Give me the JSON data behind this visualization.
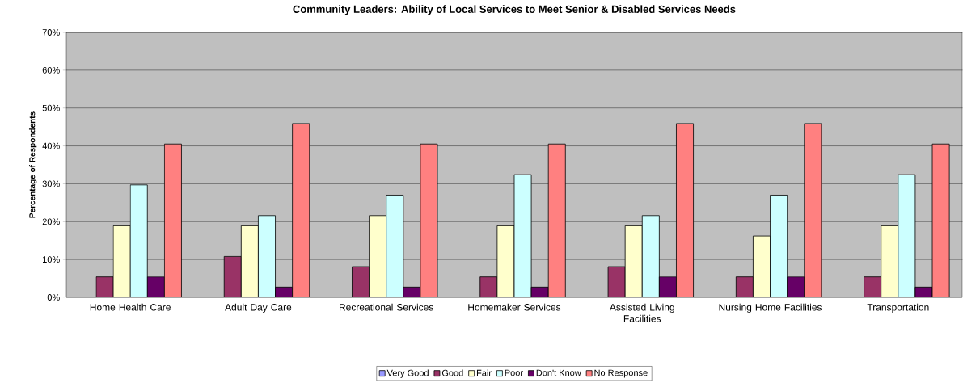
{
  "chart_data": {
    "type": "bar",
    "title": "Community Leaders: Ability of Local Services to Meet Senior & Disabled Services Needs",
    "ylabel": "Percentage of Respondents",
    "categories": [
      "Home Health Care",
      "Adult Day Care",
      "Recreational Services",
      "Homemaker Services",
      "Assisted Living Facilities",
      "Nursing Home Facilities",
      "Transportation"
    ],
    "series": [
      {
        "name": "Very Good",
        "color": "#9999ff",
        "values": [
          0,
          0,
          0,
          0,
          0,
          0,
          0
        ]
      },
      {
        "name": "Good",
        "color": "#993366",
        "values": [
          5.4,
          10.8,
          8.1,
          5.4,
          8.1,
          5.4,
          5.4
        ]
      },
      {
        "name": "Fair",
        "color": "#ffffcc",
        "values": [
          18.9,
          18.9,
          21.6,
          18.9,
          18.9,
          16.2,
          18.9
        ]
      },
      {
        "name": "Poor",
        "color": "#ccffff",
        "values": [
          29.7,
          21.6,
          27.0,
          32.4,
          21.6,
          27.0,
          32.4
        ]
      },
      {
        "name": "Don't Know",
        "color": "#660066",
        "values": [
          5.4,
          2.7,
          2.7,
          2.7,
          5.4,
          5.4,
          2.7
        ]
      },
      {
        "name": "No Response",
        "color": "#ff8080",
        "values": [
          40.5,
          45.9,
          40.5,
          40.5,
          45.9,
          45.9,
          40.5
        ]
      }
    ],
    "ylim": [
      0,
      70
    ],
    "yticks": [
      {
        "value": 0,
        "label": "0%"
      },
      {
        "value": 10,
        "label": "10%"
      },
      {
        "value": 20,
        "label": "20%"
      },
      {
        "value": 30,
        "label": "30%"
      },
      {
        "value": 40,
        "label": "40%"
      },
      {
        "value": 50,
        "label": "50%"
      },
      {
        "value": 60,
        "label": "60%"
      },
      {
        "value": 70,
        "label": "70%"
      }
    ],
    "grid": "y",
    "legend": "bottom"
  }
}
